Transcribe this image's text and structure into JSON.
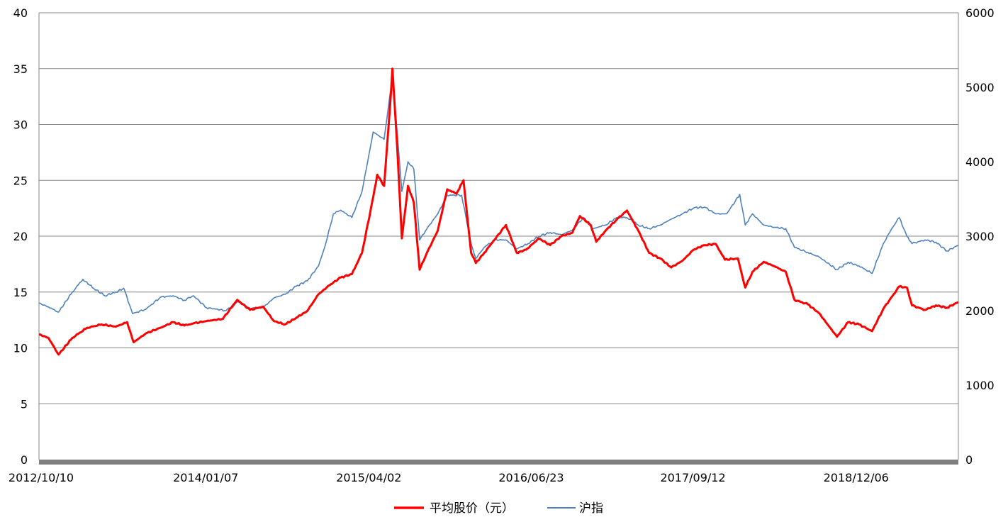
{
  "chart_data": {
    "type": "line",
    "title": "",
    "xlabel": "",
    "ylabel": "",
    "y_left": {
      "min": 0,
      "max": 40,
      "step": 5,
      "ticks": [
        "0",
        "5",
        "10",
        "15",
        "20",
        "25",
        "30",
        "35",
        "40"
      ]
    },
    "y_right": {
      "min": 0,
      "max": 6000,
      "step": 1000,
      "ticks": [
        "0",
        "1000",
        "2000",
        "3000",
        "4000",
        "5000",
        "6000"
      ]
    },
    "x_range": [
      "2012-10-10",
      "2019-09-20"
    ],
    "x_tick_labels": [
      "2012/10/10",
      "2014/01/07",
      "2015/04/02",
      "2016/06/23",
      "2017/09/12",
      "2018/12/06"
    ],
    "x_tick_dates": [
      "2012-10-10",
      "2014-01-07",
      "2015-04-02",
      "2016-06-23",
      "2017-09-12",
      "2018-12-06"
    ],
    "grid": true,
    "legend_position": "bottom",
    "series": [
      {
        "name": "平均股价（元）",
        "axis": "left",
        "color": "#ff0000",
        "points": [
          [
            "2012-10-10",
            11.2
          ],
          [
            "2012-11-05",
            10.9
          ],
          [
            "2012-12-03",
            9.4
          ],
          [
            "2013-01-10",
            10.9
          ],
          [
            "2013-02-20",
            11.8
          ],
          [
            "2013-04-01",
            12.1
          ],
          [
            "2013-05-10",
            11.9
          ],
          [
            "2013-06-10",
            12.3
          ],
          [
            "2013-06-28",
            10.5
          ],
          [
            "2013-08-01",
            11.3
          ],
          [
            "2013-09-10",
            11.8
          ],
          [
            "2013-10-15",
            12.3
          ],
          [
            "2013-11-15",
            12.0
          ],
          [
            "2013-12-10",
            12.2
          ],
          [
            "2014-01-15",
            12.4
          ],
          [
            "2014-03-01",
            12.6
          ],
          [
            "2014-04-10",
            14.3
          ],
          [
            "2014-05-15",
            13.4
          ],
          [
            "2014-06-20",
            13.7
          ],
          [
            "2014-07-20",
            12.4
          ],
          [
            "2014-08-20",
            12.1
          ],
          [
            "2014-09-20",
            12.7
          ],
          [
            "2014-10-20",
            13.3
          ],
          [
            "2014-11-20",
            14.8
          ],
          [
            "2014-12-20",
            15.6
          ],
          [
            "2015-01-20",
            16.3
          ],
          [
            "2015-02-20",
            16.6
          ],
          [
            "2015-03-20",
            18.5
          ],
          [
            "2015-04-20",
            23.5
          ],
          [
            "2015-05-01",
            25.5
          ],
          [
            "2015-05-20",
            24.5
          ],
          [
            "2015-06-05",
            31.5
          ],
          [
            "2015-06-12",
            35.0
          ],
          [
            "2015-06-25",
            28.0
          ],
          [
            "2015-07-08",
            19.8
          ],
          [
            "2015-07-25",
            24.5
          ],
          [
            "2015-08-10",
            23.0
          ],
          [
            "2015-08-26",
            17.0
          ],
          [
            "2015-09-15",
            18.5
          ],
          [
            "2015-10-15",
            20.5
          ],
          [
            "2015-11-10",
            24.2
          ],
          [
            "2015-12-05",
            23.8
          ],
          [
            "2015-12-25",
            25.0
          ],
          [
            "2016-01-15",
            18.5
          ],
          [
            "2016-01-28",
            17.6
          ],
          [
            "2016-02-20",
            18.5
          ],
          [
            "2016-03-15",
            19.5
          ],
          [
            "2016-04-20",
            21.0
          ],
          [
            "2016-05-20",
            18.5
          ],
          [
            "2016-06-15",
            18.8
          ],
          [
            "2016-07-20",
            19.8
          ],
          [
            "2016-08-20",
            19.2
          ],
          [
            "2016-09-20",
            20.0
          ],
          [
            "2016-10-20",
            20.3
          ],
          [
            "2016-11-10",
            21.8
          ],
          [
            "2016-12-10",
            21.0
          ],
          [
            "2016-12-25",
            19.5
          ],
          [
            "2017-01-20",
            20.5
          ],
          [
            "2017-02-20",
            21.5
          ],
          [
            "2017-03-20",
            22.3
          ],
          [
            "2017-04-20",
            20.5
          ],
          [
            "2017-05-20",
            18.5
          ],
          [
            "2017-06-20",
            18.0
          ],
          [
            "2017-07-20",
            17.2
          ],
          [
            "2017-08-20",
            17.8
          ],
          [
            "2017-09-20",
            18.8
          ],
          [
            "2017-10-20",
            19.2
          ],
          [
            "2017-11-20",
            19.3
          ],
          [
            "2017-12-15",
            17.9
          ],
          [
            "2018-01-20",
            18.0
          ],
          [
            "2018-02-09",
            15.4
          ],
          [
            "2018-03-01",
            16.8
          ],
          [
            "2018-04-01",
            17.7
          ],
          [
            "2018-05-01",
            17.3
          ],
          [
            "2018-06-01",
            16.8
          ],
          [
            "2018-06-25",
            14.3
          ],
          [
            "2018-08-01",
            13.9
          ],
          [
            "2018-09-01",
            13.1
          ],
          [
            "2018-10-20",
            11.0
          ],
          [
            "2018-11-20",
            12.3
          ],
          [
            "2018-12-20",
            12.1
          ],
          [
            "2019-01-25",
            11.5
          ],
          [
            "2019-02-25",
            13.5
          ],
          [
            "2019-04-10",
            15.5
          ],
          [
            "2019-05-01",
            15.4
          ],
          [
            "2019-05-15",
            13.8
          ],
          [
            "2019-06-20",
            13.4
          ],
          [
            "2019-07-20",
            13.8
          ],
          [
            "2019-08-20",
            13.6
          ],
          [
            "2019-09-20",
            14.1
          ]
        ]
      },
      {
        "name": "沪指",
        "axis": "right",
        "color": "#4f81bd",
        "points": [
          [
            "2012-10-10",
            2100
          ],
          [
            "2012-11-05",
            2050
          ],
          [
            "2012-12-03",
            1980
          ],
          [
            "2013-01-10",
            2250
          ],
          [
            "2013-02-08",
            2420
          ],
          [
            "2013-03-10",
            2300
          ],
          [
            "2013-04-10",
            2200
          ],
          [
            "2013-05-10",
            2250
          ],
          [
            "2013-06-01",
            2300
          ],
          [
            "2013-06-25",
            1960
          ],
          [
            "2013-08-01",
            2020
          ],
          [
            "2013-09-10",
            2180
          ],
          [
            "2013-10-15",
            2200
          ],
          [
            "2013-11-15",
            2140
          ],
          [
            "2013-12-10",
            2200
          ],
          [
            "2014-01-15",
            2040
          ],
          [
            "2014-03-10",
            2000
          ],
          [
            "2014-04-10",
            2120
          ],
          [
            "2014-05-15",
            2030
          ],
          [
            "2014-06-20",
            2040
          ],
          [
            "2014-07-20",
            2170
          ],
          [
            "2014-08-20",
            2220
          ],
          [
            "2014-09-20",
            2330
          ],
          [
            "2014-10-20",
            2400
          ],
          [
            "2014-11-20",
            2600
          ],
          [
            "2014-12-10",
            2900
          ],
          [
            "2014-12-31",
            3300
          ],
          [
            "2015-01-20",
            3350
          ],
          [
            "2015-02-20",
            3250
          ],
          [
            "2015-03-20",
            3600
          ],
          [
            "2015-04-20",
            4400
          ],
          [
            "2015-05-20",
            4300
          ],
          [
            "2015-06-12",
            5150
          ],
          [
            "2015-06-20",
            4700
          ],
          [
            "2015-07-08",
            3600
          ],
          [
            "2015-07-25",
            4000
          ],
          [
            "2015-08-10",
            3900
          ],
          [
            "2015-08-26",
            2950
          ],
          [
            "2015-09-15",
            3100
          ],
          [
            "2015-10-15",
            3300
          ],
          [
            "2015-11-10",
            3550
          ],
          [
            "2015-12-20",
            3550
          ],
          [
            "2016-01-15",
            2900
          ],
          [
            "2016-01-28",
            2700
          ],
          [
            "2016-02-20",
            2850
          ],
          [
            "2016-03-20",
            2950
          ],
          [
            "2016-04-20",
            2950
          ],
          [
            "2016-05-20",
            2830
          ],
          [
            "2016-06-20",
            2900
          ],
          [
            "2016-07-20",
            3000
          ],
          [
            "2016-08-20",
            3050
          ],
          [
            "2016-09-20",
            3020
          ],
          [
            "2016-10-20",
            3080
          ],
          [
            "2016-11-20",
            3250
          ],
          [
            "2016-12-15",
            3100
          ],
          [
            "2016-12-30",
            3120
          ],
          [
            "2017-01-20",
            3150
          ],
          [
            "2017-02-20",
            3250
          ],
          [
            "2017-03-20",
            3250
          ],
          [
            "2017-04-20",
            3150
          ],
          [
            "2017-05-20",
            3100
          ],
          [
            "2017-06-20",
            3150
          ],
          [
            "2017-07-20",
            3230
          ],
          [
            "2017-08-20",
            3300
          ],
          [
            "2017-09-20",
            3380
          ],
          [
            "2017-10-20",
            3390
          ],
          [
            "2017-11-20",
            3300
          ],
          [
            "2017-12-20",
            3300
          ],
          [
            "2018-01-25",
            3560
          ],
          [
            "2018-02-09",
            3150
          ],
          [
            "2018-03-01",
            3300
          ],
          [
            "2018-04-01",
            3150
          ],
          [
            "2018-05-01",
            3120
          ],
          [
            "2018-06-01",
            3100
          ],
          [
            "2018-06-25",
            2850
          ],
          [
            "2018-08-01",
            2780
          ],
          [
            "2018-09-01",
            2720
          ],
          [
            "2018-10-20",
            2550
          ],
          [
            "2018-11-20",
            2650
          ],
          [
            "2018-12-20",
            2600
          ],
          [
            "2019-01-25",
            2500
          ],
          [
            "2019-02-25",
            2900
          ],
          [
            "2019-03-20",
            3100
          ],
          [
            "2019-04-10",
            3250
          ],
          [
            "2019-05-01",
            3000
          ],
          [
            "2019-05-15",
            2900
          ],
          [
            "2019-06-20",
            2950
          ],
          [
            "2019-07-20",
            2920
          ],
          [
            "2019-08-20",
            2800
          ],
          [
            "2019-09-20",
            2880
          ]
        ]
      }
    ]
  }
}
